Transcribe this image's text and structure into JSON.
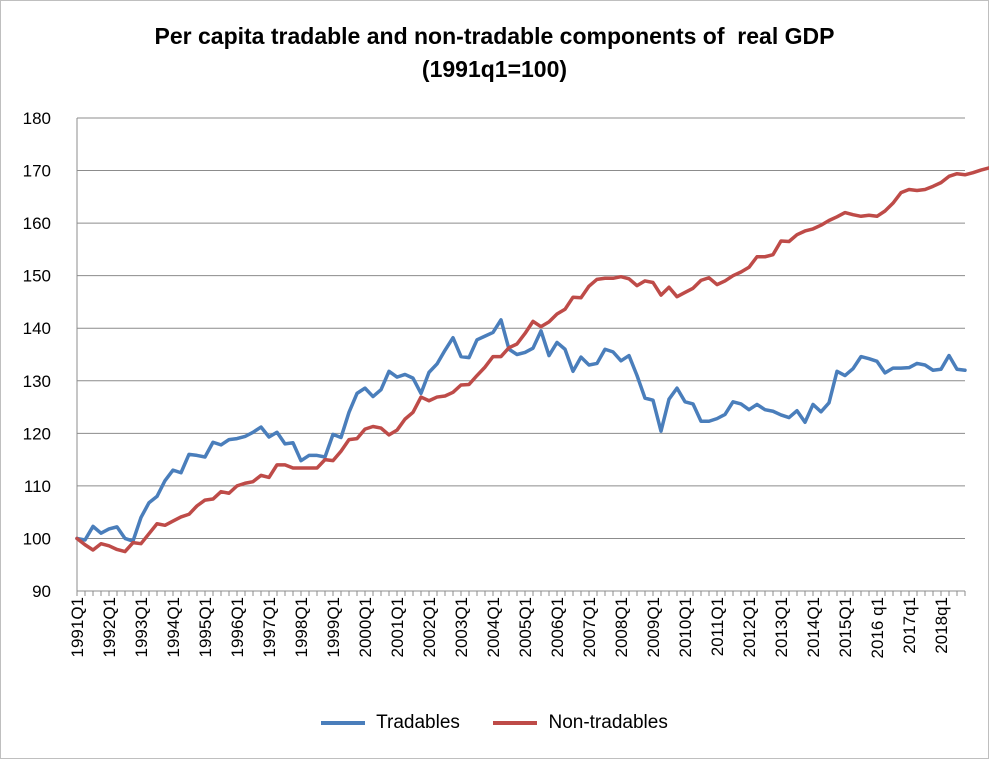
{
  "chart_data": {
    "type": "line",
    "title": "Per capita tradable and non-tradable components of  real GDP",
    "subtitle": "(1991q1=100)",
    "xlabel": "",
    "ylabel": "",
    "ylim": [
      90,
      180
    ],
    "yticks": [
      90,
      100,
      110,
      120,
      130,
      140,
      150,
      160,
      170,
      180
    ],
    "grid": true,
    "legend_position": "bottom",
    "x_tick_labels": [
      "1991Q1",
      "1992Q1",
      "1993Q1",
      "1994Q1",
      "1995Q1",
      "1996Q1",
      "1997Q1",
      "1998Q1",
      "1999Q1",
      "2000Q1",
      "2001Q1",
      "2002Q1",
      "2003Q1",
      "2004Q1",
      "2005Q1",
      "2006Q1",
      "2007Q1",
      "2008Q1",
      "2009Q1",
      "2010Q1",
      "2011Q1",
      "2012Q1",
      "2013Q1",
      "2014Q1",
      "2015Q1",
      "2016 q1",
      "2017q1",
      "2018q1"
    ],
    "series": [
      {
        "name": "Tradables",
        "color": "#4a7ebb",
        "values": [
          100,
          99.7,
          102.3,
          101,
          101.8,
          102.2,
          100,
          99.5,
          104,
          106.8,
          108,
          111,
          113,
          112.5,
          116,
          115.8,
          115.5,
          118.3,
          117.8,
          118.8,
          119,
          119.4,
          120.2,
          121.2,
          119.3,
          120.2,
          118,
          118.2,
          114.8,
          115.8,
          115.8,
          115.5,
          119.8,
          119.2,
          124,
          127.6,
          128.6,
          127,
          128.3,
          131.8,
          130.7,
          131.2,
          130.5,
          127.6,
          131.6,
          133.2,
          135.8,
          138.2,
          134.6,
          134.4,
          137.8,
          138.5,
          139.2,
          141.6,
          136,
          135,
          135.4,
          136.2,
          139.5,
          134.8,
          137.3,
          136,
          131.8,
          134.5,
          133,
          133.3,
          136,
          135.5,
          133.8,
          134.8,
          131,
          126.7,
          126.3,
          120.4,
          126.5,
          128.6,
          126,
          125.6,
          122.3,
          122.3,
          122.8,
          123.6,
          126,
          125.6,
          124.5,
          125.5,
          124.5,
          124.2,
          123.5,
          123,
          124.3,
          122.1,
          125.5,
          124.1,
          125.8,
          131.8,
          131,
          132.3,
          134.6,
          134.2,
          133.7,
          131.5,
          132.4,
          132.4,
          132.5,
          133.3,
          133,
          132,
          132.2,
          134.8,
          132.2,
          132
        ]
      },
      {
        "name": "Non-tradables",
        "color": "#be4b48",
        "values": [
          100,
          98.8,
          97.8,
          99,
          98.6,
          97.9,
          97.5,
          99.2,
          99,
          100.9,
          102.8,
          102.5,
          103.3,
          104.1,
          104.6,
          106.2,
          107.3,
          107.5,
          108.9,
          108.6,
          110,
          110.5,
          110.8,
          112,
          111.6,
          114,
          114,
          113.4,
          113.4,
          113.4,
          113.4,
          115,
          114.8,
          116.6,
          118.8,
          119,
          120.8,
          121.3,
          121,
          119.7,
          120.6,
          122.7,
          124,
          126.9,
          126.2,
          126.9,
          127.1,
          127.8,
          129.2,
          129.3,
          131,
          132.6,
          134.6,
          134.6,
          136.3,
          137,
          139,
          141.3,
          140.3,
          141.2,
          142.7,
          143.6,
          145.9,
          145.8,
          148,
          149.3,
          149.5,
          149.5,
          149.8,
          149.4,
          148.1,
          149,
          148.7,
          146.3,
          147.8,
          146,
          146.8,
          147.6,
          149.1,
          149.6,
          148.3,
          149,
          150,
          150.7,
          151.6,
          153.6,
          153.6,
          154,
          156.6,
          156.5,
          157.8,
          158.5,
          158.9,
          159.6,
          160.5,
          161.2,
          162,
          161.6,
          161.3,
          161.5,
          161.3,
          162.3,
          163.8,
          165.8,
          166.4,
          166.2,
          166.4,
          167,
          167.7,
          168.9,
          169.4,
          169.2,
          169.6,
          170.1,
          170.5
        ]
      }
    ]
  }
}
